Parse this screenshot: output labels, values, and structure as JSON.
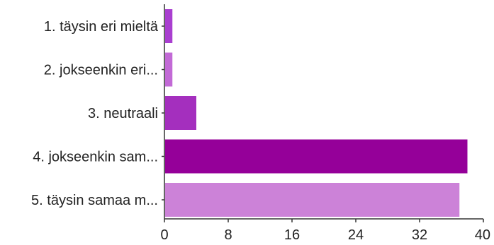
{
  "chart_data": {
    "type": "bar",
    "orientation": "horizontal",
    "categories": [
      "1. täysin eri mieltä",
      "2. jokseenkin eri...",
      "3. neutraali",
      "4. jokseenkin sam...",
      "5. täysin samaa m..."
    ],
    "values": [
      1,
      1,
      4,
      38,
      37
    ],
    "colors": [
      "#a93fd0",
      "#c26ad6",
      "#a42fbe",
      "#950099",
      "#cc82d8"
    ],
    "xlim": [
      0,
      40
    ],
    "xticks": [
      0,
      8,
      16,
      24,
      32,
      40
    ],
    "grid": false,
    "title": "",
    "xlabel": "",
    "ylabel": ""
  }
}
